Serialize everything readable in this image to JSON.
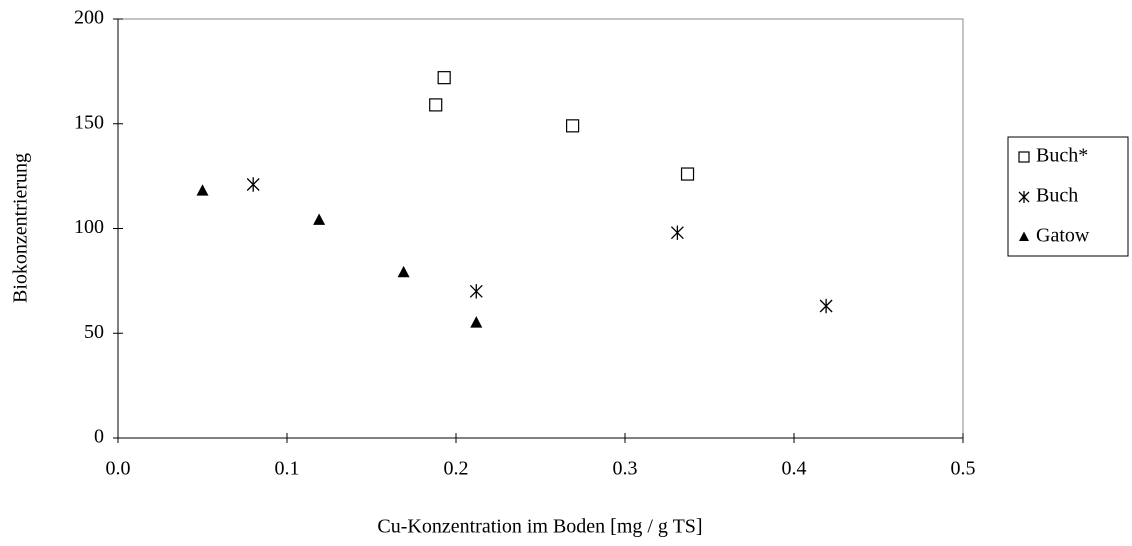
{
  "chart_data": {
    "type": "scatter",
    "x_label": "Cu-Konzentration im Boden [mg / g TS]",
    "y_label": "Biokonzentrierung",
    "xlim": [
      0,
      0.5
    ],
    "ylim": [
      0,
      200
    ],
    "xticks": [
      {
        "value": 0,
        "label": "0.0"
      },
      {
        "value": 0.1,
        "label": "0.1"
      },
      {
        "value": 0.2,
        "label": "0.2"
      },
      {
        "value": 0.3,
        "label": "0.3"
      },
      {
        "value": 0.4,
        "label": "0.4"
      },
      {
        "value": 0.5,
        "label": "0.5"
      }
    ],
    "yticks": [
      0,
      50,
      100,
      150,
      200
    ],
    "legend": "right",
    "series": [
      {
        "name": "Buch*",
        "marker": "square",
        "color": "#000000",
        "x": [
          0.188,
          0.193,
          0.269,
          0.337
        ],
        "values": [
          159,
          172,
          149,
          126
        ]
      },
      {
        "name": "Buch",
        "marker": "asterisk",
        "color": "#000000",
        "x": [
          0.08,
          0.212,
          0.331,
          0.419
        ],
        "values": [
          121,
          70,
          98,
          63
        ]
      },
      {
        "name": "Gatow",
        "marker": "triangle",
        "color": "#000000",
        "x": [
          0.05,
          0.119,
          0.169,
          0.212
        ],
        "values": [
          118,
          104,
          79,
          55
        ]
      }
    ]
  }
}
